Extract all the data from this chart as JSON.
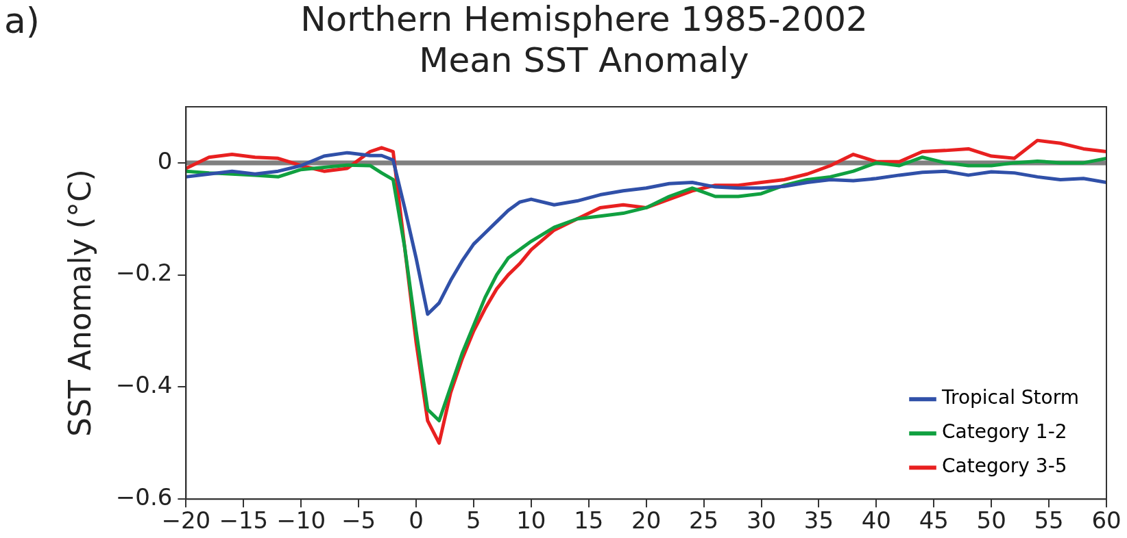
{
  "chart_data": {
    "type": "line",
    "title": "Northern Hemisphere 1985-2002",
    "subtitle": "Mean SST Anomaly",
    "ylabel": "SST Anomaly (°C)",
    "annotations": [
      "a)"
    ],
    "x": [
      -20,
      -18,
      -16,
      -14,
      -12,
      -10,
      -8,
      -6,
      -4,
      -3,
      -2,
      -1,
      0,
      1,
      2,
      3,
      4,
      5,
      6,
      7,
      8,
      9,
      10,
      12,
      14,
      16,
      18,
      20,
      22,
      24,
      26,
      28,
      30,
      32,
      34,
      36,
      38,
      40,
      42,
      44,
      46,
      48,
      50,
      52,
      54,
      56,
      58,
      60
    ],
    "series": [
      {
        "name": "Tropical Storm",
        "color": "#3050a8",
        "values": [
          -0.025,
          -0.02,
          -0.015,
          -0.02,
          -0.015,
          -0.005,
          0.012,
          0.018,
          0.013,
          0.013,
          0.005,
          -0.08,
          -0.17,
          -0.27,
          -0.25,
          -0.21,
          -0.175,
          -0.145,
          -0.125,
          -0.105,
          -0.085,
          -0.07,
          -0.065,
          -0.075,
          -0.068,
          -0.057,
          -0.05,
          -0.045,
          -0.037,
          -0.035,
          -0.043,
          -0.045,
          -0.045,
          -0.042,
          -0.035,
          -0.03,
          -0.032,
          -0.028,
          -0.022,
          -0.017,
          -0.015,
          -0.022,
          -0.016,
          -0.018,
          -0.025,
          -0.03,
          -0.028,
          -0.035
        ]
      },
      {
        "name": "Category 1-2",
        "color": "#10a040",
        "values": [
          -0.015,
          -0.018,
          -0.02,
          -0.022,
          -0.025,
          -0.012,
          -0.008,
          -0.004,
          -0.005,
          -0.018,
          -0.03,
          -0.15,
          -0.3,
          -0.44,
          -0.46,
          -0.4,
          -0.34,
          -0.29,
          -0.24,
          -0.2,
          -0.17,
          -0.155,
          -0.14,
          -0.115,
          -0.1,
          -0.095,
          -0.09,
          -0.08,
          -0.06,
          -0.045,
          -0.06,
          -0.06,
          -0.055,
          -0.04,
          -0.03,
          -0.025,
          -0.015,
          0.0,
          -0.005,
          0.01,
          0.0,
          -0.005,
          -0.005,
          0.0,
          0.003,
          0.0,
          0.0,
          0.008
        ]
      },
      {
        "name": "Category 3-5",
        "color": "#e82020",
        "values": [
          -0.01,
          0.01,
          0.015,
          0.01,
          0.008,
          -0.005,
          -0.015,
          -0.01,
          0.02,
          0.027,
          0.02,
          -0.15,
          -0.32,
          -0.46,
          -0.5,
          -0.41,
          -0.35,
          -0.3,
          -0.26,
          -0.225,
          -0.2,
          -0.18,
          -0.155,
          -0.12,
          -0.1,
          -0.08,
          -0.075,
          -0.08,
          -0.065,
          -0.05,
          -0.04,
          -0.04,
          -0.035,
          -0.03,
          -0.02,
          -0.005,
          0.015,
          0.002,
          0.002,
          0.02,
          0.022,
          0.025,
          0.012,
          0.008,
          0.04,
          0.035,
          0.025,
          0.02
        ]
      }
    ],
    "xlim": [
      -20,
      60
    ],
    "xticks": [
      -20,
      -15,
      -10,
      -5,
      0,
      5,
      10,
      15,
      20,
      25,
      30,
      35,
      40,
      45,
      50,
      55,
      60
    ],
    "ylim": [
      -0.6,
      0.1
    ],
    "yticks": [
      {
        "value": -0.6,
        "label": "−0.6"
      },
      {
        "value": -0.4,
        "label": "−0.4"
      },
      {
        "value": -0.2,
        "label": "−0.2"
      },
      0
    ],
    "ref_lines": [
      {
        "axis": "y",
        "value": 0,
        "color": "#808080"
      }
    ],
    "grid": false,
    "legend": "bottom right",
    "marker": "none",
    "line_style": "solid"
  }
}
